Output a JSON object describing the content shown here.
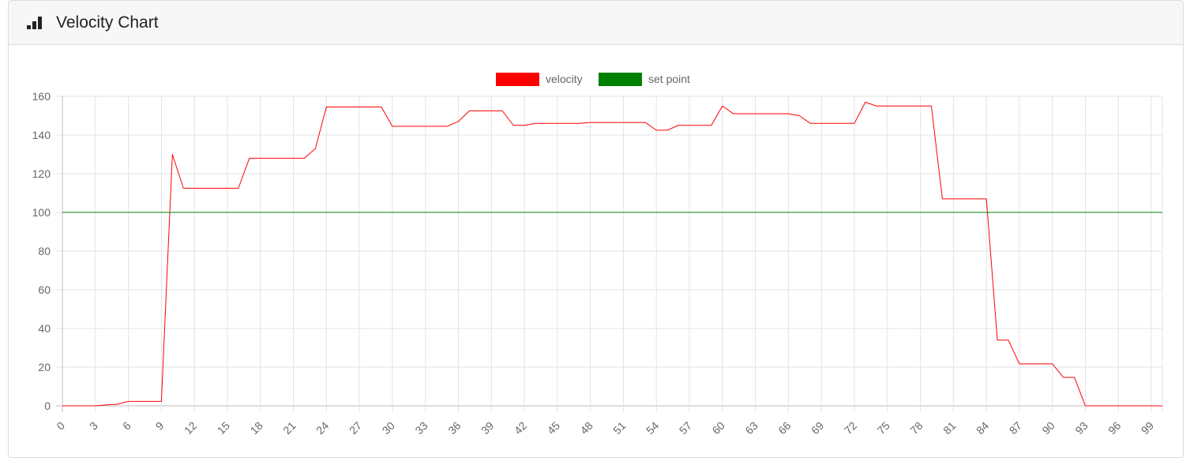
{
  "header": {
    "icon": "bar-chart-icon",
    "title": "Velocity Chart"
  },
  "chart_data": {
    "type": "line",
    "title": "",
    "xlabel": "",
    "ylabel": "",
    "ylim": [
      0,
      160
    ],
    "yticks": [
      0,
      20,
      40,
      60,
      80,
      100,
      120,
      140,
      160
    ],
    "x": [
      0,
      1,
      2,
      3,
      4,
      5,
      6,
      7,
      8,
      9,
      10,
      11,
      12,
      13,
      14,
      15,
      16,
      17,
      18,
      19,
      20,
      21,
      22,
      23,
      24,
      25,
      26,
      27,
      28,
      29,
      30,
      31,
      32,
      33,
      34,
      35,
      36,
      37,
      38,
      39,
      40,
      41,
      42,
      43,
      44,
      45,
      46,
      47,
      48,
      49,
      50,
      51,
      52,
      53,
      54,
      55,
      56,
      57,
      58,
      59,
      60,
      61,
      62,
      63,
      64,
      65,
      66,
      67,
      68,
      69,
      70,
      71,
      72,
      73,
      74,
      75,
      76,
      77,
      78,
      79,
      80,
      81,
      82,
      83,
      84,
      85,
      86,
      87,
      88,
      89,
      90,
      91,
      92,
      93,
      94,
      95,
      96,
      97,
      98,
      99,
      100
    ],
    "xtick_labels": [
      "0",
      "3",
      "6",
      "9",
      "12",
      "15",
      "18",
      "21",
      "24",
      "27",
      "30",
      "33",
      "36",
      "39",
      "42",
      "45",
      "48",
      "51",
      "54",
      "57",
      "60",
      "63",
      "66",
      "69",
      "72",
      "75",
      "78",
      "81",
      "84",
      "87",
      "90",
      "93",
      "96",
      "99"
    ],
    "grid": true,
    "legend_position": "top-center",
    "series": [
      {
        "name": "velocity",
        "color": "#ff0000",
        "values": [
          0,
          0,
          0,
          0,
          0.5,
          0.8,
          2.3,
          2.3,
          2.3,
          2.3,
          130,
          112.5,
          112.5,
          112.5,
          112.5,
          112.5,
          112.5,
          128,
          128,
          128,
          128,
          128,
          128,
          133,
          154.5,
          154.5,
          154.5,
          154.5,
          154.5,
          154.5,
          144.5,
          144.5,
          144.5,
          144.5,
          144.5,
          144.5,
          147,
          152.5,
          152.5,
          152.5,
          152.5,
          145,
          145,
          146,
          146,
          146,
          146,
          146,
          146.5,
          146.5,
          146.5,
          146.5,
          146.5,
          146.5,
          142.5,
          142.5,
          145,
          145,
          145,
          145,
          155,
          151,
          151,
          151,
          151,
          151,
          151,
          150,
          146,
          146,
          146,
          146,
          146,
          157,
          155,
          155,
          155,
          155,
          155,
          155,
          107,
          107,
          107,
          107,
          107,
          34,
          34,
          21.7,
          21.7,
          21.7,
          21.7,
          14.7,
          14.7,
          0,
          0,
          0,
          0,
          0,
          0,
          0,
          0
        ]
      },
      {
        "name": "set point",
        "color": "#008000",
        "values": [
          100,
          100,
          100,
          100,
          100,
          100,
          100,
          100,
          100,
          100,
          100,
          100,
          100,
          100,
          100,
          100,
          100,
          100,
          100,
          100,
          100,
          100,
          100,
          100,
          100,
          100,
          100,
          100,
          100,
          100,
          100,
          100,
          100,
          100,
          100,
          100,
          100,
          100,
          100,
          100,
          100,
          100,
          100,
          100,
          100,
          100,
          100,
          100,
          100,
          100,
          100,
          100,
          100,
          100,
          100,
          100,
          100,
          100,
          100,
          100,
          100,
          100,
          100,
          100,
          100,
          100,
          100,
          100,
          100,
          100,
          100,
          100,
          100,
          100,
          100,
          100,
          100,
          100,
          100,
          100,
          100,
          100,
          100,
          100,
          100,
          100,
          100,
          100,
          100,
          100,
          100,
          100,
          100,
          100,
          100,
          100,
          100,
          100,
          100,
          100,
          100
        ]
      }
    ]
  }
}
